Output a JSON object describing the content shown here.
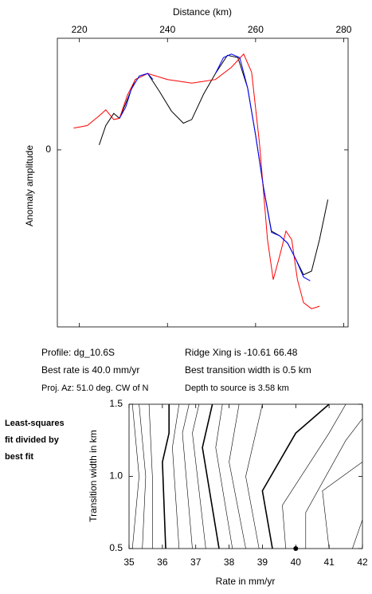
{
  "chart_data": [
    {
      "type": "line",
      "xlabel": "Distance (km)",
      "ylabel": "Anomaly amplitude",
      "xlim": [
        215,
        281
      ],
      "ylim": [
        -1.46,
        0.92
      ],
      "xticks": [
        220,
        240,
        260,
        280
      ],
      "yticks": [
        0
      ],
      "series": [
        {
          "color": "#000000",
          "x": [
            224.5,
            226,
            227.8,
            229.1,
            230.5,
            232.7,
            235.5,
            238.2,
            240.9,
            243.6,
            245.5,
            248.2,
            250.9,
            253.6,
            256,
            258.2,
            260,
            261.8,
            263.6,
            265.5,
            267.3,
            269.1,
            270.9,
            272.7,
            274.5,
            276.4
          ],
          "values": [
            0.04,
            0.2,
            0.3,
            0.26,
            0.38,
            0.58,
            0.63,
            0.48,
            0.32,
            0.22,
            0.25,
            0.46,
            0.63,
            0.78,
            0.76,
            0.51,
            0.12,
            -0.31,
            -0.67,
            -0.71,
            -0.77,
            -0.9,
            -1.03,
            -1.0,
            -0.74,
            -0.41
          ]
        },
        {
          "color": "#ff0000",
          "x": [
            218.7,
            221.8,
            224.5,
            226,
            227.8,
            229.1,
            230.9,
            232.7,
            235.5,
            240,
            245.5,
            250.9,
            254.5,
            257.3,
            259.1,
            260.9,
            262.7,
            264,
            265.5,
            266.9,
            268.2,
            269.5,
            270.9,
            272.7,
            274.5
          ],
          "values": [
            0.18,
            0.2,
            0.28,
            0.33,
            0.25,
            0.26,
            0.45,
            0.58,
            0.63,
            0.58,
            0.55,
            0.58,
            0.68,
            0.79,
            0.64,
            0.05,
            -0.74,
            -1.07,
            -0.87,
            -0.67,
            -0.74,
            -1.07,
            -1.26,
            -1.31,
            -1.29
          ]
        },
        {
          "color": "#0000ff",
          "x": [
            229.1,
            230.5,
            231.8,
            233.6,
            235.5,
            236.7,
            null,
            250.9,
            252.7,
            254.5,
            256.4,
            258.2,
            260,
            261.8,
            263.6,
            265.5,
            267.3,
            269.1,
            270.9,
            272.4
          ],
          "values": [
            0.26,
            0.35,
            0.5,
            0.61,
            0.63,
            0.58,
            null,
            0.63,
            0.76,
            0.79,
            0.76,
            0.51,
            0.12,
            -0.31,
            -0.68,
            -0.71,
            -0.77,
            -0.9,
            -1.05,
            -1.08
          ]
        }
      ]
    },
    {
      "type": "contour",
      "xlabel": "Rate in mm/yr",
      "ylabel": "Transition width in km",
      "note": [
        "Least-squares",
        "fit divided by",
        "best fit"
      ],
      "xlim": [
        35,
        42
      ],
      "ylim": [
        0.5,
        1.5
      ],
      "xticks": [
        35,
        36,
        37,
        38,
        39,
        40,
        41,
        42
      ],
      "yticks": [
        0.5,
        {
          "value": 1.0,
          "label": "1.0"
        },
        1.5
      ],
      "best": {
        "x": 40,
        "y": 0.5
      },
      "series": [
        {
          "color": "#000000",
          "bold": false,
          "x": [
            35.1,
            35.3,
            35.1
          ],
          "values": [
            0.5,
            1.0,
            1.5
          ]
        },
        {
          "color": "#000000",
          "bold": false,
          "x": [
            35.4,
            35.5,
            35.3
          ],
          "values": [
            0.5,
            1.0,
            1.5
          ]
        },
        {
          "color": "#000000",
          "bold": false,
          "x": [
            35.7,
            35.7,
            35.6
          ],
          "values": [
            0.5,
            1.0,
            1.5
          ]
        },
        {
          "color": "#000000",
          "bold": true,
          "x": [
            36.1,
            36.0,
            36.2,
            36.2
          ],
          "values": [
            0.5,
            1.1,
            1.3,
            1.5
          ]
        },
        {
          "color": "#000000",
          "bold": false,
          "x": [
            36.5,
            36.3,
            36.5
          ],
          "values": [
            0.5,
            1.2,
            1.5
          ]
        },
        {
          "color": "#000000",
          "bold": false,
          "x": [
            36.9,
            36.6,
            36.8
          ],
          "values": [
            0.5,
            1.3,
            1.5
          ]
        },
        {
          "color": "#000000",
          "bold": false,
          "x": [
            37.3,
            36.9,
            37.1
          ],
          "values": [
            0.5,
            1.3,
            1.5
          ]
        },
        {
          "color": "#000000",
          "bold": true,
          "x": [
            37.7,
            37.2,
            37.5
          ],
          "values": [
            0.5,
            1.2,
            1.5
          ]
        },
        {
          "color": "#000000",
          "bold": false,
          "x": [
            38.1,
            37.6,
            37.8
          ],
          "values": [
            0.5,
            1.2,
            1.5
          ]
        },
        {
          "color": "#000000",
          "bold": false,
          "x": [
            38.5,
            38.0,
            38.3
          ],
          "values": [
            0.5,
            1.1,
            1.5
          ]
        },
        {
          "color": "#000000",
          "bold": false,
          "x": [
            38.9,
            38.5,
            39.0
          ],
          "values": [
            0.5,
            1.0,
            1.5
          ]
        },
        {
          "color": "#000000",
          "bold": true,
          "x": [
            39.3,
            39.0,
            40.0,
            41.0
          ],
          "values": [
            0.5,
            0.9,
            1.3,
            1.5
          ]
        },
        {
          "color": "#000000",
          "bold": false,
          "x": [
            39.7,
            39.6,
            41.0,
            41.5
          ],
          "values": [
            0.5,
            0.8,
            1.3,
            1.5
          ]
        },
        {
          "color": "#000000",
          "bold": false,
          "x": [
            40.3,
            40.3,
            41.5,
            42
          ],
          "values": [
            0.5,
            0.75,
            1.25,
            1.4
          ]
        },
        {
          "color": "#000000",
          "bold": false,
          "x": [
            41.0,
            40.8,
            42
          ],
          "values": [
            0.5,
            0.9,
            1.1
          ]
        },
        {
          "color": "#000000",
          "bold": false,
          "x": [
            41.7,
            42
          ],
          "values": [
            0.5,
            0.7
          ]
        }
      ]
    }
  ],
  "info": {
    "left": [
      "Profile: dg_10.6S",
      "Best rate is 40.0 mm/yr",
      "Proj. Az: 51.0 deg. CW of N"
    ],
    "right": [
      "Ridge Xing is -10.61  66.48",
      "Best transition width is 0.5 km",
      "Depth to source is   3.58 km"
    ]
  }
}
